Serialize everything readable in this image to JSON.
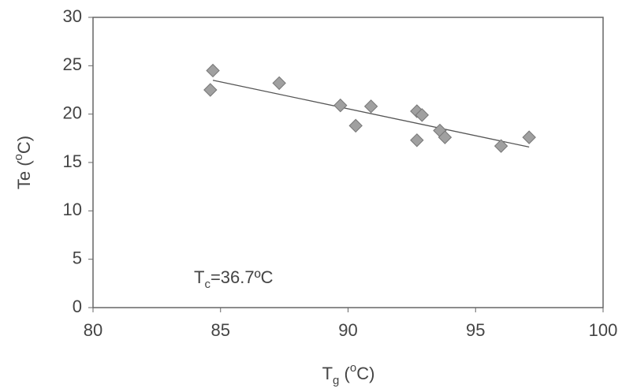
{
  "chart_data": {
    "type": "scatter",
    "x_label": {
      "main": "T",
      "sub": "g",
      "open": " (",
      "sup": "o",
      "close": "C)"
    },
    "y_label": {
      "main": "Te (",
      "sup": "o",
      "close": "C)"
    },
    "annotation": {
      "main": "T",
      "sub": "c",
      "rest": "=36.7ºC"
    },
    "xlim": [
      80,
      100
    ],
    "xticks": [
      80,
      85,
      90,
      95,
      100
    ],
    "ylim": [
      0,
      30
    ],
    "yticks": [
      0,
      5,
      10,
      15,
      20,
      25,
      30
    ],
    "color": "#a0a0a0",
    "x": [
      84.6,
      84.7,
      87.3,
      89.7,
      90.3,
      90.9,
      92.7,
      92.7,
      92.9,
      93.6,
      93.8,
      96.0,
      97.1
    ],
    "values": [
      22.5,
      24.5,
      23.2,
      20.9,
      18.8,
      20.8,
      17.3,
      20.3,
      19.9,
      18.3,
      17.6,
      16.7,
      17.6
    ],
    "trendline": {
      "x": [
        84.7,
        97.1
      ],
      "values": [
        23.5,
        16.6
      ]
    }
  }
}
